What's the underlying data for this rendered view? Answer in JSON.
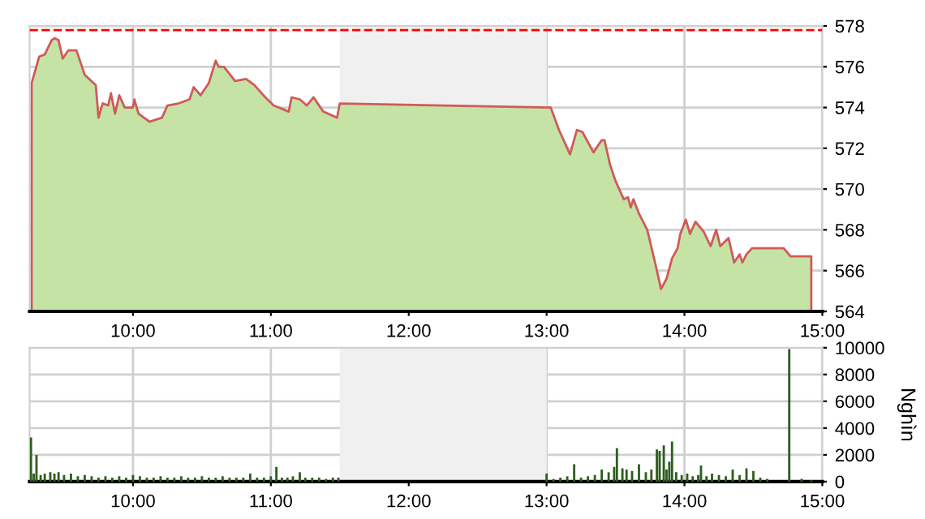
{
  "chart_data": [
    {
      "type": "area",
      "xlim": [
        9.25,
        15
      ],
      "ylim": [
        564,
        578
      ],
      "xticks": [
        {
          "value": 10,
          "label": "10:00"
        },
        {
          "value": 11,
          "label": "11:00"
        },
        {
          "value": 12,
          "label": "12:00"
        },
        {
          "value": 13,
          "label": "13:00"
        },
        {
          "value": 14,
          "label": "14:00"
        },
        {
          "value": 15,
          "label": "15:00"
        }
      ],
      "yticks": [
        564,
        566,
        568,
        570,
        572,
        574,
        576,
        578
      ],
      "grid": true,
      "legend": false,
      "bands": [
        {
          "axis": "x",
          "from": 11.5,
          "to": 13,
          "color": "#f0f0f0"
        }
      ],
      "ref_lines": [
        {
          "axis": "y",
          "value": 577.8,
          "color": "#ff0000",
          "line_style": "dashed"
        }
      ],
      "series": [
        {
          "color": "#c5e3a5",
          "x": [
            9.265,
            9.32,
            9.36,
            9.41,
            9.43,
            9.46,
            9.49,
            9.53,
            9.59,
            9.65,
            9.73,
            9.75,
            9.78,
            9.82,
            9.84,
            9.87,
            9.9,
            9.94,
            10.0,
            10.01,
            10.04,
            10.12,
            10.21,
            10.25,
            10.33,
            10.41,
            10.44,
            10.49,
            10.55,
            10.6,
            10.62,
            10.66,
            10.74,
            10.82,
            10.88,
            10.96,
            11.02,
            11.13,
            11.15,
            11.21,
            11.26,
            11.31,
            11.38,
            11.48,
            11.5,
            13.03,
            13.09,
            13.17,
            13.22,
            13.26,
            13.34,
            13.4,
            13.42,
            13.46,
            13.5,
            13.56,
            13.59,
            13.61,
            13.63,
            13.67,
            13.73,
            13.79,
            13.83,
            13.87,
            13.91,
            13.95,
            13.97,
            14.01,
            14.04,
            14.08,
            14.14,
            14.19,
            14.23,
            14.26,
            14.32,
            14.36,
            14.4,
            14.42,
            14.45,
            14.49,
            14.72,
            14.77,
            14.92
          ],
          "values": [
            575.2,
            576.5,
            576.6,
            577.3,
            577.4,
            577.3,
            576.4,
            576.8,
            576.8,
            575.6,
            575.1,
            573.5,
            574.2,
            574.1,
            574.7,
            573.7,
            574.6,
            574.0,
            574.0,
            574.4,
            573.7,
            573.3,
            573.5,
            574.1,
            574.2,
            574.4,
            575.0,
            574.6,
            575.2,
            576.3,
            576.0,
            576.0,
            575.3,
            575.4,
            575.1,
            574.5,
            574.1,
            573.8,
            574.5,
            574.4,
            574.1,
            574.5,
            573.8,
            573.5,
            574.2,
            574.0,
            572.9,
            571.7,
            572.9,
            572.8,
            571.8,
            572.4,
            572.4,
            571.2,
            570.4,
            569.5,
            569.6,
            569.1,
            569.5,
            568.8,
            568.0,
            566.3,
            565.1,
            565.6,
            566.6,
            567.1,
            567.8,
            568.5,
            567.8,
            568.4,
            567.9,
            567.2,
            568.0,
            567.2,
            567.6,
            566.4,
            566.8,
            566.4,
            566.8,
            567.1,
            567.1,
            566.7,
            566.7
          ]
        }
      ]
    },
    {
      "type": "bar",
      "xlim": [
        9.25,
        15
      ],
      "ylim": [
        0,
        10000
      ],
      "ylabel": "Nghìn",
      "xticks": [
        {
          "value": 10,
          "label": "10:00"
        },
        {
          "value": 11,
          "label": "11:00"
        },
        {
          "value": 12,
          "label": "12:00"
        },
        {
          "value": 13,
          "label": "13:00"
        },
        {
          "value": 14,
          "label": "14:00"
        },
        {
          "value": 15,
          "label": "15:00"
        }
      ],
      "yticks": [
        0,
        2000,
        4000,
        6000,
        8000,
        10000
      ],
      "grid": true,
      "legend": false,
      "bands": [
        {
          "axis": "x",
          "from": 11.5,
          "to": 13,
          "color": "#f0f0f0"
        }
      ],
      "series": [
        {
          "color": "#2e5e1e",
          "x": [
            9.26,
            9.28,
            9.3,
            9.33,
            9.36,
            9.4,
            9.43,
            9.46,
            9.5,
            9.55,
            9.6,
            9.65,
            9.7,
            9.75,
            9.8,
            9.85,
            9.9,
            9.95,
            10.0,
            10.05,
            10.1,
            10.15,
            10.2,
            10.25,
            10.3,
            10.35,
            10.4,
            10.45,
            10.5,
            10.55,
            10.6,
            10.65,
            10.7,
            10.75,
            10.8,
            10.85,
            10.9,
            10.95,
            11.0,
            11.04,
            11.08,
            11.12,
            11.16,
            11.21,
            11.25,
            11.3,
            11.35,
            11.4,
            11.45,
            11.49,
            13.0,
            13.05,
            13.1,
            13.15,
            13.2,
            13.25,
            13.3,
            13.35,
            13.4,
            13.45,
            13.49,
            13.51,
            13.55,
            13.58,
            13.62,
            13.67,
            13.72,
            13.76,
            13.8,
            13.82,
            13.85,
            13.87,
            13.89,
            13.91,
            13.94,
            13.98,
            14.02,
            14.06,
            14.1,
            14.12,
            14.16,
            14.2,
            14.25,
            14.3,
            14.35,
            14.4,
            14.45,
            14.5,
            14.55,
            14.6,
            14.7,
            14.76,
            14.85,
            14.92
          ],
          "values": [
            3300,
            600,
            2000,
            500,
            600,
            700,
            600,
            700,
            500,
            600,
            400,
            500,
            400,
            300,
            400,
            300,
            400,
            300,
            500,
            400,
            300,
            300,
            400,
            300,
            300,
            400,
            300,
            300,
            400,
            300,
            300,
            400,
            300,
            300,
            300,
            600,
            300,
            300,
            400,
            1100,
            300,
            300,
            400,
            700,
            300,
            300,
            300,
            200,
            300,
            300,
            600,
            200,
            300,
            400,
            1300,
            300,
            400,
            500,
            900,
            700,
            1100,
            2500,
            1000,
            900,
            800,
            1300,
            700,
            900,
            2400,
            2300,
            2700,
            900,
            1500,
            3000,
            700,
            500,
            600,
            400,
            500,
            1200,
            400,
            600,
            500,
            400,
            900,
            500,
            1000,
            800,
            300,
            200,
            null,
            9900,
            200,
            100
          ]
        }
      ]
    }
  ]
}
